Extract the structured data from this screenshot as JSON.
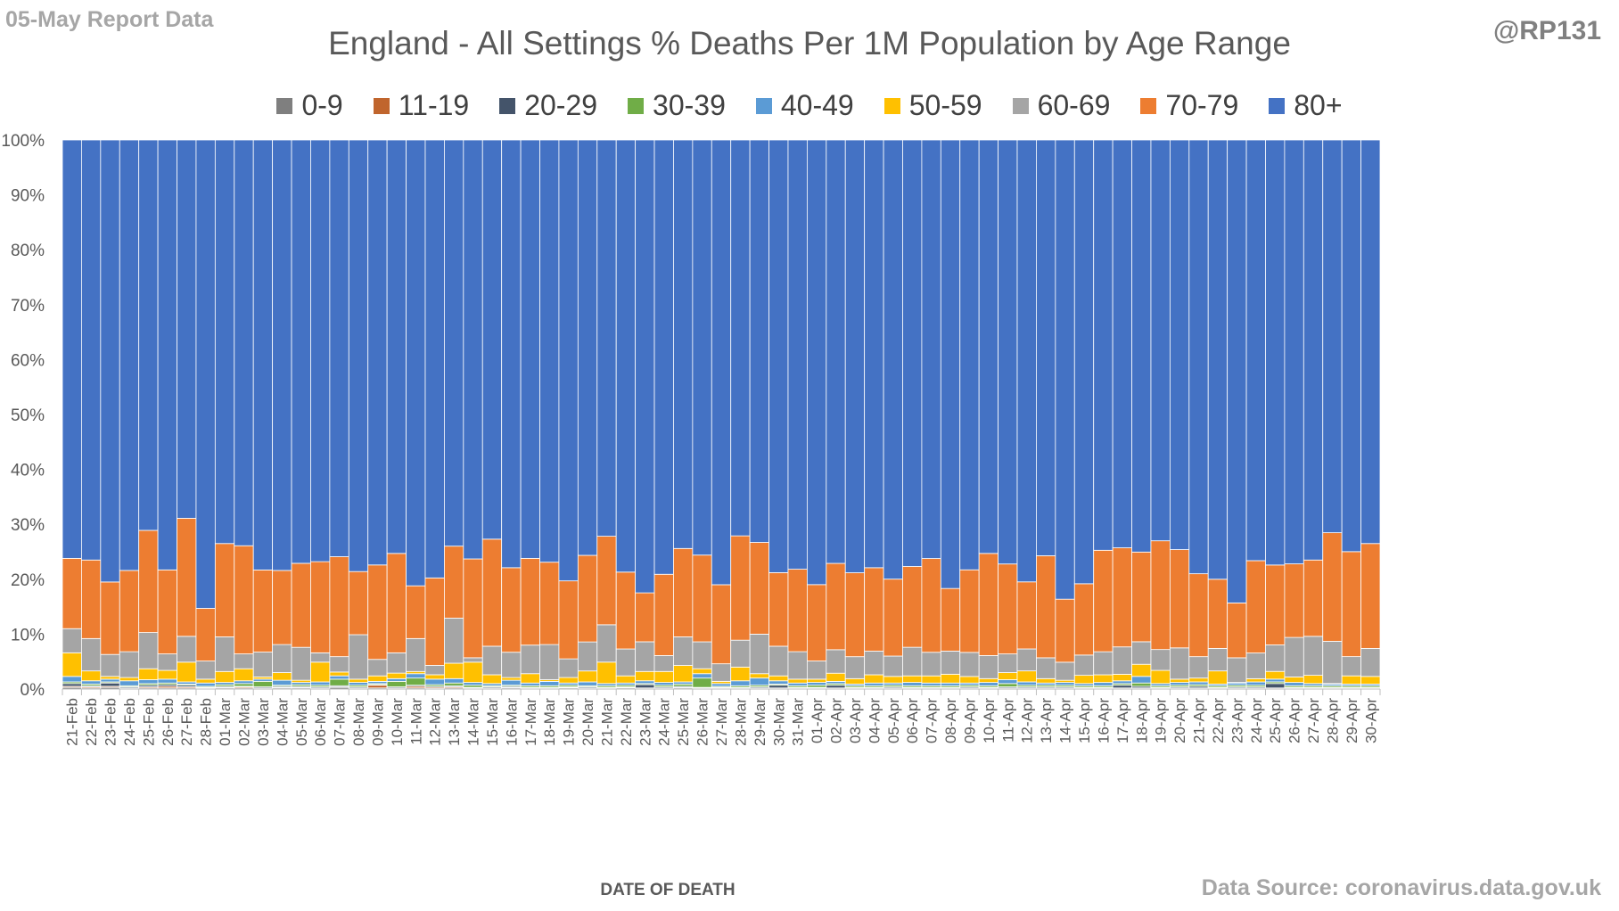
{
  "header": {
    "report_date": "05-May Report Data",
    "handle": "@RP131"
  },
  "footer": {
    "source": "Data Source: coronavirus.data.gov.uk"
  },
  "chart_data": {
    "type": "bar",
    "stacked": true,
    "percent_stacked": true,
    "title": "England - All Settings % Deaths Per 1M Population by Age Range",
    "xlabel": "DATE OF DEATH",
    "ylabel": "",
    "ylim": [
      0,
      100
    ],
    "y_ticks": [
      "0%",
      "10%",
      "20%",
      "30%",
      "40%",
      "50%",
      "60%",
      "70%",
      "80%",
      "90%",
      "100%"
    ],
    "y_tick_values": [
      0,
      10,
      20,
      30,
      40,
      50,
      60,
      70,
      80,
      90,
      100
    ],
    "legend_position": "top",
    "grid": false,
    "categories": [
      "21-Feb",
      "22-Feb",
      "23-Feb",
      "24-Feb",
      "25-Feb",
      "26-Feb",
      "27-Feb",
      "28-Feb",
      "01-Mar",
      "02-Mar",
      "03-Mar",
      "04-Mar",
      "05-Mar",
      "06-Mar",
      "07-Mar",
      "08-Mar",
      "09-Mar",
      "10-Mar",
      "11-Mar",
      "12-Mar",
      "13-Mar",
      "14-Mar",
      "15-Mar",
      "16-Mar",
      "17-Mar",
      "18-Mar",
      "19-Mar",
      "20-Mar",
      "21-Mar",
      "22-Mar",
      "23-Mar",
      "24-Mar",
      "25-Mar",
      "26-Mar",
      "27-Mar",
      "28-Mar",
      "29-Mar",
      "30-Mar",
      "31-Mar",
      "01-Apr",
      "02-Apr",
      "03-Apr",
      "04-Apr",
      "05-Apr",
      "06-Apr",
      "07-Apr",
      "08-Apr",
      "09-Apr",
      "10-Apr",
      "11-Apr",
      "12-Apr",
      "13-Apr",
      "14-Apr",
      "15-Apr",
      "16-Apr",
      "17-Apr",
      "18-Apr",
      "19-Apr",
      "20-Apr",
      "21-Apr",
      "22-Apr",
      "23-Apr",
      "24-Apr",
      "25-Apr",
      "26-Apr",
      "27-Apr",
      "28-Apr",
      "29-Apr",
      "30-Apr"
    ],
    "series": [
      {
        "name": "0-9",
        "color": "#7f7f7f",
        "values": [
          0.3,
          0.2,
          0.3,
          0.1,
          0.2,
          0.2,
          0.2,
          0.1,
          0.2,
          0.2,
          0.1,
          0.2,
          0.2,
          0.1,
          0.3,
          0.1,
          0.2,
          0.1,
          0.2,
          0.1,
          0.2,
          0.1,
          0.1,
          0.2,
          0.1,
          0.1,
          0.2,
          0.1,
          0.1,
          0.2,
          0.1,
          0.1,
          0.2,
          0.1,
          0.1,
          0.1,
          0.1,
          0.1,
          0.1,
          0.1,
          0.1,
          0.1,
          0.1,
          0.1,
          0.1,
          0.1,
          0.1,
          0.1,
          0.1,
          0.1,
          0.1,
          0.1,
          0.1,
          0.1,
          0.1,
          0.1,
          0.1,
          0.1,
          0.1,
          0.1,
          0.1,
          0.1,
          0.1,
          0.1,
          0.1,
          0.1,
          0.1,
          0.1,
          0.1
        ]
      },
      {
        "name": "11-19",
        "color": "#c0652d",
        "values": [
          0.2,
          0.2,
          0.2,
          0.1,
          0.2,
          0.3,
          0.2,
          0.1,
          0.1,
          0.2,
          0.1,
          0.1,
          0.1,
          0.1,
          0.1,
          0.1,
          0.5,
          0.1,
          0.3,
          0.2,
          0.2,
          0.1,
          0.1,
          0.1,
          0.1,
          0.1,
          0.1,
          0.1,
          0.1,
          0.1,
          0.1,
          0.1,
          0.1,
          0.1,
          0.1,
          0.1,
          0.1,
          0.1,
          0.1,
          0.1,
          0.1,
          0.1,
          0.1,
          0.1,
          0.1,
          0.1,
          0.1,
          0.1,
          0.1,
          0.1,
          0.1,
          0.1,
          0.1,
          0.1,
          0.1,
          0.1,
          0.1,
          0.1,
          0.1,
          0.1,
          0.1,
          0.1,
          0.1,
          0.1,
          0.1,
          0.1,
          0.1,
          0.1,
          0.1
        ]
      },
      {
        "name": "20-29",
        "color": "#44546a",
        "values": [
          0.5,
          0.2,
          0.6,
          0.2,
          0.3,
          0.3,
          0.3,
          0.1,
          0.2,
          0.1,
          0.2,
          0.2,
          0.2,
          0.2,
          0.2,
          0.2,
          0.1,
          0.2,
          0.2,
          0.2,
          0.2,
          0.1,
          0.2,
          0.2,
          0.1,
          0.1,
          0.1,
          0.2,
          0.1,
          0.1,
          0.6,
          0.2,
          0.2,
          0.1,
          0.1,
          0.1,
          0.2,
          0.5,
          0.1,
          0.1,
          0.5,
          0.1,
          0.1,
          0.2,
          0.1,
          0.1,
          0.1,
          0.2,
          0.1,
          0.2,
          0.2,
          0.2,
          0.2,
          0.1,
          0.1,
          0.5,
          0.3,
          0.1,
          0.2,
          0.3,
          0.1,
          0.2,
          0.2,
          0.8,
          0.1,
          0.1,
          0.1,
          0.1,
          0.1
        ]
      },
      {
        "name": "30-39",
        "color": "#70ad47",
        "values": [
          0.3,
          0.3,
          0.2,
          0.2,
          0.3,
          0.3,
          0.2,
          0.2,
          0.3,
          0.5,
          1.0,
          0.2,
          0.3,
          0.3,
          1.2,
          0.3,
          0.2,
          1.0,
          1.3,
          0.3,
          0.5,
          0.4,
          0.2,
          0.2,
          0.3,
          0.3,
          0.3,
          0.2,
          0.3,
          0.3,
          0.2,
          0.3,
          0.4,
          1.7,
          0.2,
          0.3,
          0.3,
          0.2,
          0.3,
          0.4,
          0.3,
          0.3,
          0.3,
          0.3,
          0.3,
          0.3,
          0.3,
          0.3,
          0.3,
          0.6,
          0.3,
          0.3,
          0.3,
          0.3,
          0.3,
          0.3,
          0.6,
          0.3,
          0.3,
          0.3,
          0.3,
          0.3,
          0.3,
          0.3,
          0.3,
          0.3,
          0.3,
          0.3,
          0.3
        ]
      },
      {
        "name": "40-49",
        "color": "#5b9bd5",
        "values": [
          1.0,
          0.6,
          0.5,
          0.9,
          0.7,
          0.7,
          0.4,
          0.6,
          0.4,
          0.5,
          0.4,
          0.9,
          0.4,
          0.6,
          0.6,
          0.5,
          0.4,
          0.5,
          0.8,
          1.0,
          0.8,
          0.5,
          0.4,
          0.9,
          0.5,
          0.8,
          0.4,
          0.7,
          0.4,
          0.4,
          0.5,
          0.5,
          0.4,
          0.8,
          0.5,
          0.9,
          1.3,
          0.6,
          0.5,
          0.5,
          0.4,
          0.3,
          0.5,
          0.4,
          0.6,
          0.5,
          0.5,
          0.4,
          0.6,
          0.7,
          0.6,
          0.4,
          0.5,
          0.4,
          0.6,
          0.5,
          1.2,
          0.4,
          0.5,
          0.5,
          0.3,
          0.4,
          0.6,
          0.5,
          0.6,
          0.4,
          0.3,
          0.3,
          0.3
        ]
      },
      {
        "name": "50-59",
        "color": "#ffc000",
        "values": [
          4.3,
          1.8,
          0.5,
          0.6,
          2.0,
          1.6,
          3.6,
          0.7,
          2.0,
          2.2,
          0.4,
          1.4,
          0.4,
          3.6,
          0.7,
          0.6,
          1.0,
          1.0,
          0.4,
          0.8,
          2.8,
          3.7,
          1.6,
          0.5,
          1.7,
          0.3,
          1.0,
          2.0,
          3.9,
          1.3,
          1.7,
          2.0,
          3.0,
          0.9,
          0.4,
          2.5,
          0.8,
          0.9,
          0.7,
          0.6,
          1.5,
          1.0,
          1.5,
          1.2,
          1.2,
          1.3,
          1.6,
          1.2,
          0.7,
          1.3,
          2.0,
          0.8,
          0.4,
          1.5,
          1.4,
          1.2,
          2.2,
          2.4,
          0.6,
          0.7,
          2.4,
          0.1,
          0.6,
          1.4,
          1.0,
          1.5,
          0.1,
          1.5,
          1.4
        ]
      },
      {
        "name": "60-69",
        "color": "#a5a5a5",
        "values": [
          4.4,
          5.9,
          4.0,
          4.7,
          6.6,
          3.0,
          4.7,
          3.3,
          6.3,
          2.7,
          4.5,
          5.1,
          6.0,
          1.7,
          2.8,
          8.1,
          3.0,
          3.7,
          6.0,
          1.7,
          8.2,
          0.8,
          5.2,
          4.6,
          5.2,
          6.4,
          3.4,
          5.3,
          6.8,
          4.9,
          5.4,
          2.9,
          5.2,
          4.9,
          3.2,
          4.9,
          7.2,
          5.4,
          5.0,
          3.3,
          4.3,
          4.0,
          4.3,
          3.7,
          5.2,
          4.3,
          4.2,
          4.4,
          4.2,
          3.4,
          4.0,
          3.8,
          3.3,
          3.7,
          4.2,
          5.0,
          4.1,
          3.8,
          5.7,
          3.9,
          4.1,
          4.5,
          4.7,
          4.8,
          7.2,
          7.1,
          7.7,
          3.5,
          5.1
        ]
      },
      {
        "name": "70-79",
        "color": "#ed7d31",
        "values": [
          12.8,
          14.3,
          13.2,
          14.8,
          18.6,
          15.3,
          21.5,
          9.6,
          17.0,
          19.7,
          14.9,
          13.5,
          15.3,
          16.6,
          18.2,
          11.5,
          17.2,
          18.1,
          9.6,
          15.9,
          13.1,
          18.0,
          19.5,
          15.4,
          15.8,
          15.0,
          14.2,
          15.8,
          16.1,
          14.0,
          8.9,
          14.8,
          16.1,
          15.8,
          14.4,
          19.0,
          16.7,
          13.4,
          15.0,
          13.9,
          15.8,
          15.3,
          15.2,
          14.0,
          14.7,
          17.1,
          11.4,
          15.1,
          18.6,
          16.4,
          12.2,
          18.6,
          11.5,
          13.0,
          18.5,
          18.1,
          16.3,
          19.8,
          17.9,
          15.1,
          12.6,
          10.0,
          16.9,
          14.5,
          13.4,
          13.9,
          19.8,
          19.1,
          19.1
        ]
      },
      {
        "name": "80+",
        "color": "#4472c4",
        "values": [
          76.2,
          76.5,
          80.5,
          78.4,
          71.1,
          78.3,
          68.9,
          85.3,
          73.5,
          73.9,
          78.0,
          78.4,
          77.1,
          76.8,
          75.9,
          78.6,
          77.4,
          75.3,
          81.2,
          79.6,
          73.9,
          76.3,
          72.7,
          77.9,
          76.2,
          76.9,
          80.3,
          75.8,
          72.1,
          78.7,
          82.4,
          79.1,
          74.4,
          75.6,
          81.0,
          72.1,
          73.3,
          78.8,
          78.1,
          80.9,
          77.5,
          78.9,
          77.9,
          79.9,
          77.6,
          76.3,
          81.6,
          78.6,
          75.3,
          77.3,
          80.4,
          75.8,
          83.8,
          80.9,
          74.8,
          74.5,
          74.9,
          73.0,
          74.6,
          79.0,
          80.0,
          84.4,
          77.0,
          77.1,
          77.2,
          76.5,
          71.6,
          74.9,
          73.5
        ]
      }
    ]
  }
}
